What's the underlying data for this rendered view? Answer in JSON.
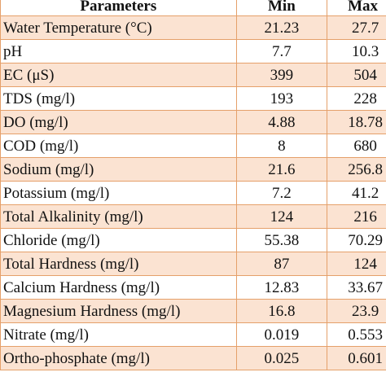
{
  "table": {
    "headers": [
      "Parameters",
      "Min",
      "Max"
    ],
    "rows": [
      {
        "parameter": "Water Temperature (°C)",
        "min": "21.23",
        "max": "27.7"
      },
      {
        "parameter": "pH",
        "min": "7.7",
        "max": "10.3"
      },
      {
        "parameter": "EC (μS)",
        "min": "399",
        "max": "504"
      },
      {
        "parameter": "TDS (mg/l)",
        "min": "193",
        "max": "228"
      },
      {
        "parameter": "DO (mg/l)",
        "min": "4.88",
        "max": "18.78"
      },
      {
        "parameter": "COD (mg/l)",
        "min": "8",
        "max": "680"
      },
      {
        "parameter": "Sodium (mg/l)",
        "min": "21.6",
        "max": "256.8"
      },
      {
        "parameter": "Potassium (mg/l)",
        "min": "7.2",
        "max": "41.2"
      },
      {
        "parameter": "Total Alkalinity (mg/l)",
        "min": "124",
        "max": "216"
      },
      {
        "parameter": "Chloride (mg/l)",
        "min": "55.38",
        "max": "70.29"
      },
      {
        "parameter": "Total Hardness (mg/l)",
        "min": "87",
        "max": "124"
      },
      {
        "parameter": "Calcium Hardness (mg/l)",
        "min": "12.83",
        "max": "33.67"
      },
      {
        "parameter": "Magnesium Hardness (mg/l)",
        "min": "16.8",
        "max": "23.9"
      },
      {
        "parameter": "Nitrate (mg/l)",
        "min": "0.019",
        "max": "0.553"
      },
      {
        "parameter": "Ortho-phosphate (mg/l)",
        "min": "0.025",
        "max": "0.601"
      }
    ]
  },
  "colors": {
    "shaded_row": "#fbe3d2",
    "border": "#e5a06a"
  }
}
